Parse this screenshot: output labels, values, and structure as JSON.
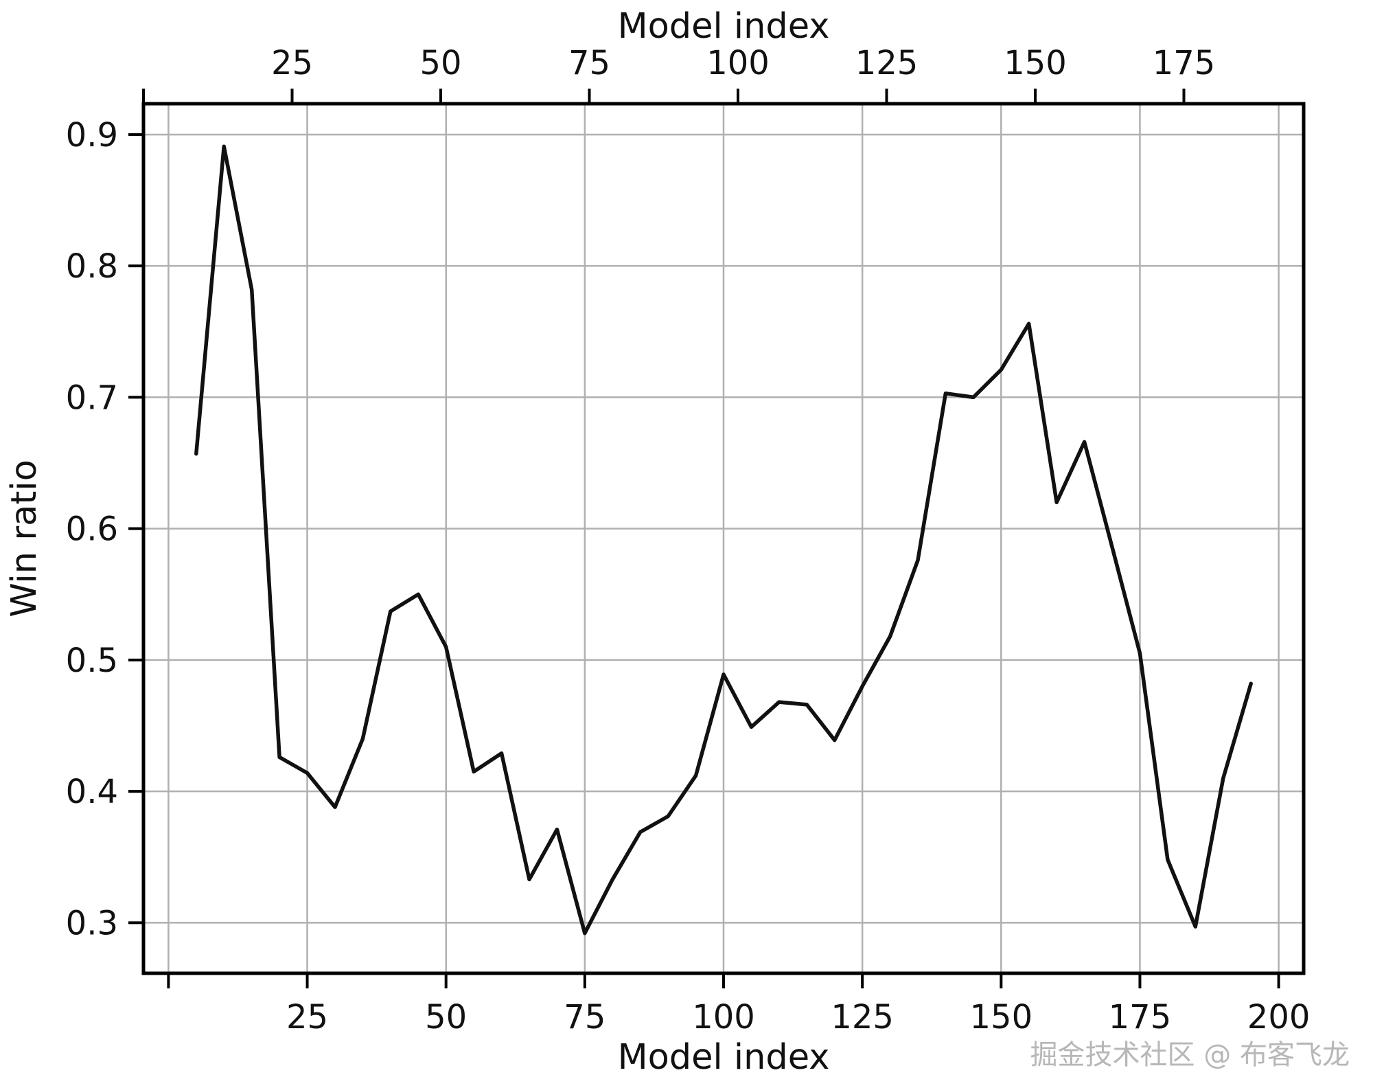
{
  "chart_data": {
    "type": "line",
    "title": "",
    "xlabel": "Model index",
    "xlabel_top": "Model index",
    "ylabel": "Win ratio",
    "x": [
      5,
      10,
      15,
      20,
      25,
      30,
      35,
      40,
      45,
      50,
      55,
      60,
      65,
      70,
      75,
      80,
      85,
      90,
      95,
      100,
      105,
      110,
      115,
      120,
      125,
      130,
      135,
      140,
      145,
      150,
      155,
      160,
      165,
      170,
      175,
      180,
      185,
      190,
      195
    ],
    "y": [
      0.657,
      0.891,
      0.782,
      0.426,
      0.414,
      0.388,
      0.44,
      0.537,
      0.55,
      0.51,
      0.415,
      0.429,
      0.333,
      0.371,
      0.292,
      0.333,
      0.369,
      0.381,
      0.412,
      0.489,
      0.449,
      0.468,
      0.466,
      0.439,
      0.48,
      0.518,
      0.576,
      0.703,
      0.7,
      0.721,
      0.756,
      0.62,
      0.666,
      0.586,
      0.505,
      0.348,
      0.297,
      0.41,
      0.482
    ],
    "xlim": [
      -4.5,
      204.5
    ],
    "xlim_top": [
      0,
      195.15
    ],
    "ylim": [
      0.2615,
      0.9235
    ],
    "xticks_bottom": {
      "values": [
        0,
        25,
        50,
        75,
        100,
        125,
        150,
        175,
        200
      ],
      "labels": [
        "",
        "25",
        "50",
        "75",
        "100",
        "125",
        "150",
        "175",
        "200"
      ]
    },
    "xticks_top": {
      "values": [
        0,
        25,
        50,
        75,
        100,
        125,
        150,
        175
      ],
      "labels": [
        "",
        "25",
        "50",
        "75",
        "100",
        "125",
        "150",
        "175"
      ]
    },
    "yticks": {
      "values": [
        0.3,
        0.4,
        0.5,
        0.6,
        0.7,
        0.8,
        0.9
      ],
      "labels": [
        "0.3",
        "0.4",
        "0.5",
        "0.6",
        "0.7",
        "0.8",
        "0.9"
      ]
    },
    "grid": true,
    "legend": "none",
    "line_color": "#111111",
    "grid_color": "#b0b0b0",
    "spine_color": "#000000"
  },
  "watermark": {
    "text": "掘金技术社区 @ 布客飞龙",
    "color": "#b7b7b7"
  }
}
